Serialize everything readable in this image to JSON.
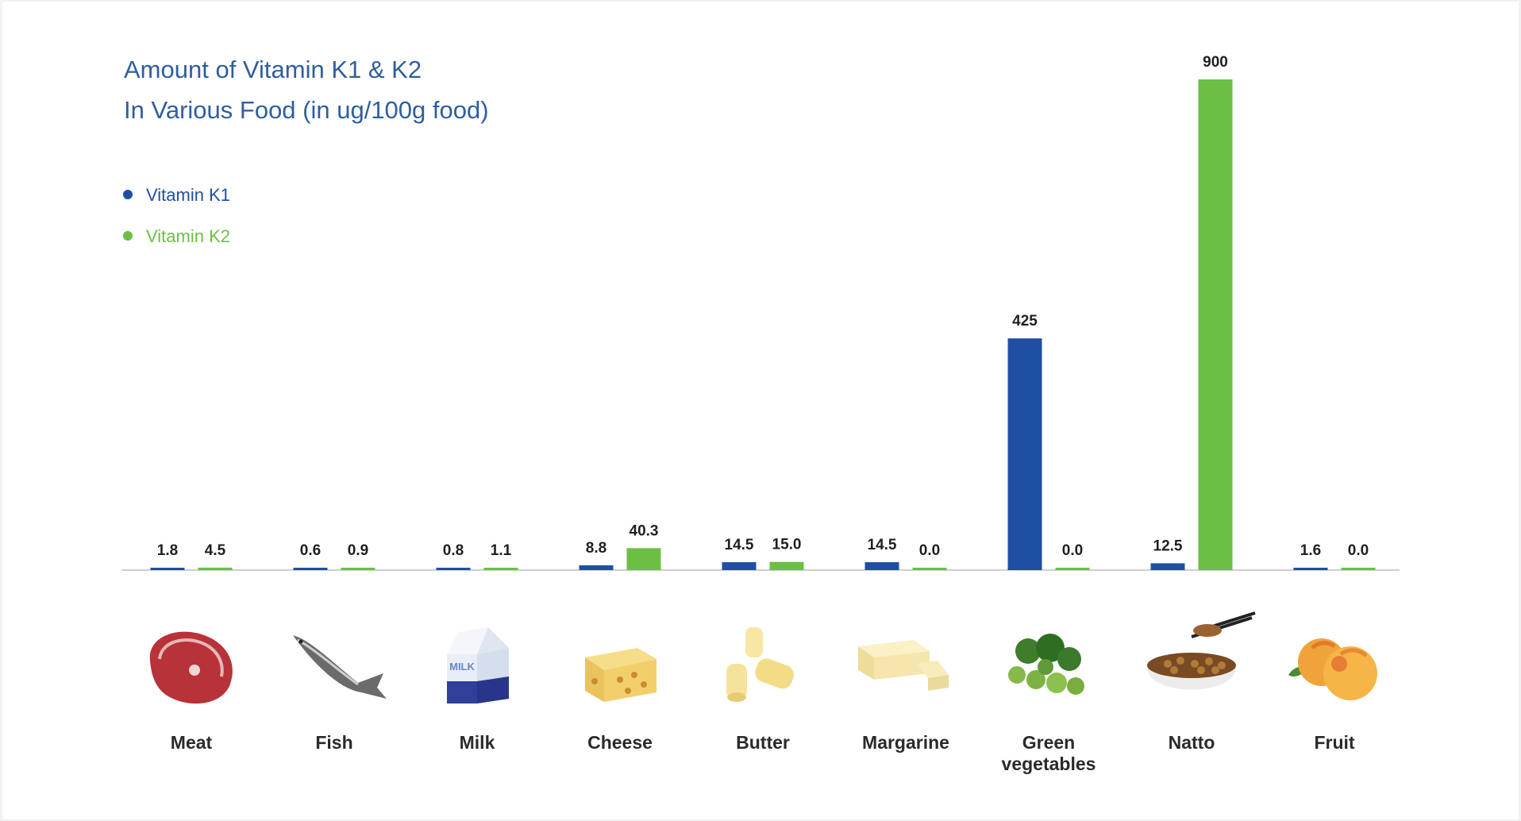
{
  "chart_data": {
    "type": "bar",
    "title": [
      "Amount of Vitamin K1 & K2",
      "In Various Food (in ug/100g food)"
    ],
    "categories": [
      "Meat",
      "Fish",
      "Milk",
      "Cheese",
      "Butter",
      "Margarine",
      "Green vegetables",
      "Natto",
      "Fruit"
    ],
    "category_lines": [
      [
        "Meat"
      ],
      [
        "Fish"
      ],
      [
        "Milk"
      ],
      [
        "Cheese"
      ],
      [
        "Butter"
      ],
      [
        "Margarine"
      ],
      [
        "Green",
        "vegetables"
      ],
      [
        "Natto"
      ],
      [
        "Fruit"
      ]
    ],
    "series": [
      {
        "name": "Vitamin K1",
        "color": "#1f4fa3",
        "values": [
          1.8,
          0.6,
          0.8,
          8.8,
          14.5,
          14.5,
          425,
          12.5,
          1.6
        ],
        "labels": [
          "1.8",
          "0.6",
          "0.8",
          "8.8",
          "14.5",
          "14.5",
          "425",
          "12.5",
          "1.6"
        ]
      },
      {
        "name": "Vitamin K2",
        "color": "#6cbf45",
        "values": [
          4.5,
          0.9,
          1.1,
          40.3,
          15.0,
          0.0,
          0.0,
          900,
          0.0
        ],
        "labels": [
          "4.5",
          "0.9",
          "1.1",
          "40.3",
          "15.0",
          "0.0",
          "0.0",
          "900",
          "0.0"
        ]
      }
    ],
    "food_icons": [
      "steak-icon",
      "fish-icon",
      "milk-carton-icon",
      "cheese-icon",
      "butter-icon",
      "margarine-icon",
      "vegetables-icon",
      "natto-bowl-icon",
      "peach-icon"
    ],
    "ylim": [
      0,
      900
    ],
    "grid": false,
    "legend_position": "top-left",
    "colors": {
      "title": "#2e5f9e",
      "k1": "#1f4fa3",
      "k2": "#6cbf45",
      "baseline": "#cfcfcf"
    }
  }
}
